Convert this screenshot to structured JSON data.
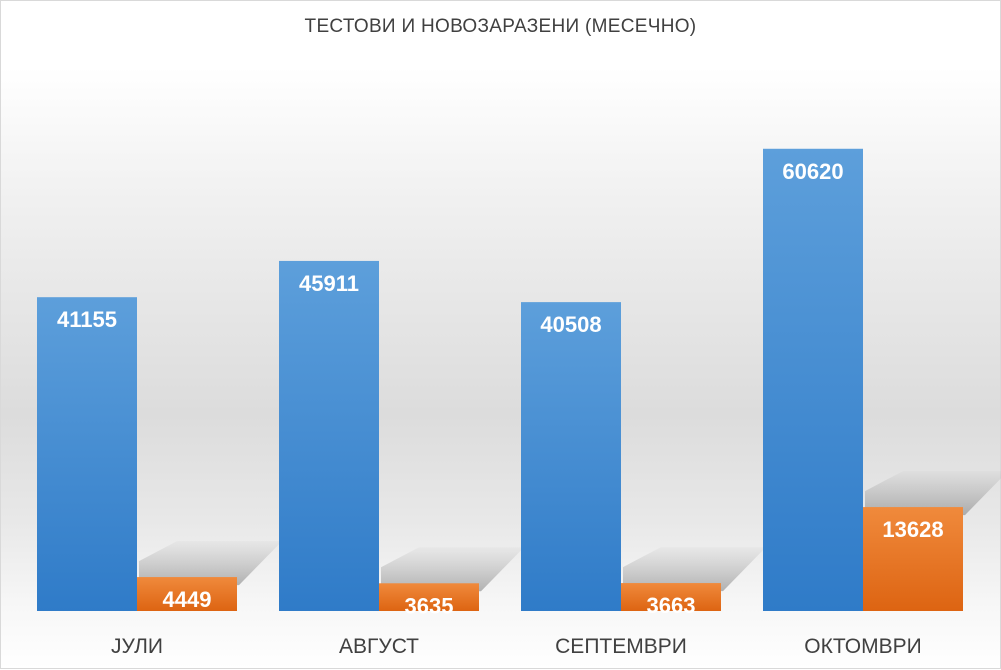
{
  "chart_data": {
    "type": "bar",
    "title": "ТЕСТОВИ И НОВОЗАРАЗЕНИ (МЕСЕЧНО)",
    "categories": [
      "ЈУЛИ",
      "АВГУСТ",
      "СЕПТЕМВРИ",
      "ОКТОМВРИ"
    ],
    "series": [
      {
        "values": [
          41155,
          45911,
          40508,
          60620
        ],
        "color": "#3c85cc"
      },
      {
        "values": [
          4449,
          3635,
          3663,
          13628
        ],
        "color": "#e87424"
      }
    ],
    "ylim": [
      0,
      72000
    ],
    "grid": false,
    "legend": "none",
    "data_labels": "inside-top"
  }
}
